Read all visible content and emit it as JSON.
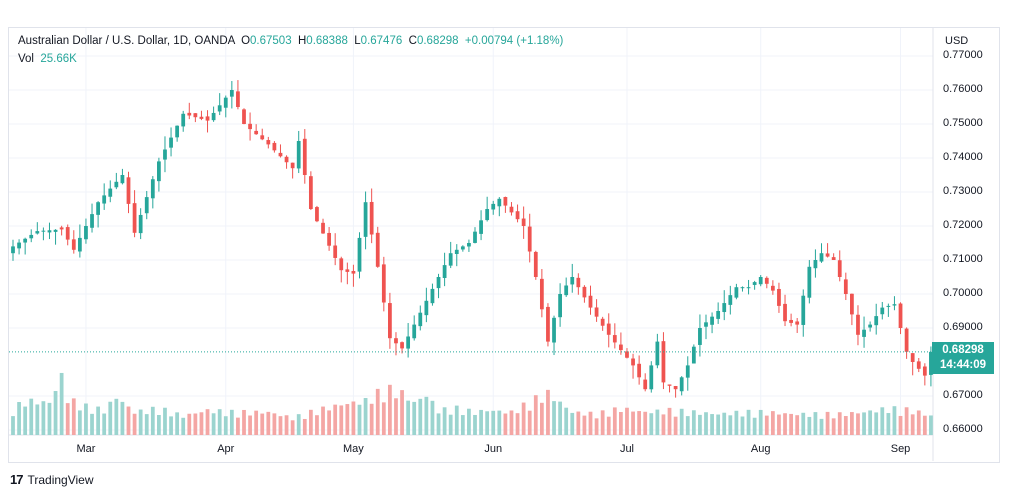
{
  "legend": {
    "symbol": "Australian Dollar / U.S. Dollar, 1D, OANDA",
    "o_label": "O",
    "o_value": "0.67503",
    "h_label": "H",
    "h_value": "0.68388",
    "l_label": "L",
    "l_value": "0.67476",
    "c_label": "C",
    "c_value": "0.68298",
    "change": "+0.00794 (+1.18%)",
    "vol_label": "Vol",
    "vol_value": "25.66K"
  },
  "price_axis": {
    "currency": "USD",
    "current_price": "0.68298",
    "countdown": "14:44:09"
  },
  "footer": {
    "logo": "17",
    "brand": "TradingView"
  },
  "colors": {
    "up": "#26a69a",
    "down": "#ef5350",
    "up_vol": "#9bd4cf",
    "down_vol": "#f4a6a4",
    "grid": "#f0f3fa"
  },
  "chart_data": {
    "type": "candlestick",
    "y_ticks": [
      0.77,
      0.76,
      0.75,
      0.74,
      0.73,
      0.72,
      0.71,
      0.7,
      0.69,
      0.67,
      0.66
    ],
    "y_tick_labels": [
      "0.77000",
      "0.76000",
      "0.75000",
      "0.74000",
      "0.73000",
      "0.72000",
      "0.71000",
      "0.70000",
      "0.69000",
      "0.67000",
      "0.66000"
    ],
    "ylim": [
      0.6585,
      0.7725
    ],
    "x_ticks": [
      {
        "label": "Mar",
        "index": 12
      },
      {
        "label": "Apr",
        "index": 35
      },
      {
        "label": "May",
        "index": 56
      },
      {
        "label": "Jun",
        "index": 79
      },
      {
        "label": "Jul",
        "index": 101
      },
      {
        "label": "Aug",
        "index": 123
      },
      {
        "label": "Sep",
        "index": 146
      }
    ],
    "close_anchors": [
      [
        0,
        0.714
      ],
      [
        4,
        0.7185
      ],
      [
        8,
        0.719
      ],
      [
        10,
        0.713
      ],
      [
        14,
        0.727
      ],
      [
        18,
        0.735
      ],
      [
        20,
        0.718
      ],
      [
        24,
        0.739
      ],
      [
        28,
        0.753
      ],
      [
        32,
        0.751
      ],
      [
        36,
        0.76
      ],
      [
        38,
        0.75
      ],
      [
        42,
        0.744
      ],
      [
        46,
        0.737
      ],
      [
        47,
        0.745
      ],
      [
        49,
        0.725
      ],
      [
        54,
        0.707
      ],
      [
        56,
        0.706
      ],
      [
        58,
        0.727
      ],
      [
        60,
        0.708
      ],
      [
        62,
        0.687
      ],
      [
        64,
        0.684
      ],
      [
        68,
        0.698
      ],
      [
        72,
        0.712
      ],
      [
        75,
        0.715
      ],
      [
        78,
        0.725
      ],
      [
        80,
        0.728
      ],
      [
        84,
        0.72
      ],
      [
        86,
        0.705
      ],
      [
        88,
        0.686
      ],
      [
        90,
        0.7
      ],
      [
        92,
        0.705
      ],
      [
        95,
        0.696
      ],
      [
        98,
        0.688
      ],
      [
        102,
        0.679
      ],
      [
        104,
        0.672
      ],
      [
        106,
        0.686
      ],
      [
        107,
        0.674
      ],
      [
        109,
        0.672
      ],
      [
        111,
        0.679
      ],
      [
        113,
        0.69
      ],
      [
        116,
        0.695
      ],
      [
        119,
        0.702
      ],
      [
        121,
        0.702
      ],
      [
        123,
        0.705
      ],
      [
        125,
        0.701
      ],
      [
        127,
        0.692
      ],
      [
        129,
        0.691
      ],
      [
        131,
        0.708
      ],
      [
        133,
        0.712
      ],
      [
        135,
        0.71
      ],
      [
        137,
        0.7
      ],
      [
        139,
        0.688
      ],
      [
        141,
        0.691
      ],
      [
        143,
        0.696
      ],
      [
        145,
        0.697
      ],
      [
        147,
        0.683
      ],
      [
        148,
        0.68
      ],
      [
        150,
        0.676
      ],
      [
        151,
        0.683
      ]
    ],
    "volume_anchors": [
      [
        0,
        13.5
      ],
      [
        2,
        18
      ],
      [
        6,
        17
      ],
      [
        8,
        31
      ],
      [
        9,
        19
      ],
      [
        12,
        15
      ],
      [
        15,
        13
      ],
      [
        17,
        20
      ],
      [
        20,
        12
      ],
      [
        24,
        14
      ],
      [
        28,
        10
      ],
      [
        32,
        13
      ],
      [
        36,
        12
      ],
      [
        42,
        12
      ],
      [
        46,
        9
      ],
      [
        50,
        13
      ],
      [
        54,
        16
      ],
      [
        58,
        18
      ],
      [
        60,
        22
      ],
      [
        62,
        24
      ],
      [
        64,
        22
      ],
      [
        66,
        17
      ],
      [
        68,
        21
      ],
      [
        70,
        13
      ],
      [
        73,
        14
      ],
      [
        76,
        12
      ],
      [
        78,
        13
      ],
      [
        82,
        12
      ],
      [
        86,
        19
      ],
      [
        88,
        22
      ],
      [
        90,
        17
      ],
      [
        92,
        12
      ],
      [
        96,
        11
      ],
      [
        100,
        14
      ],
      [
        104,
        12
      ],
      [
        108,
        13
      ],
      [
        112,
        12
      ],
      [
        116,
        11
      ],
      [
        120,
        12
      ],
      [
        124,
        12
      ],
      [
        128,
        11
      ],
      [
        132,
        11
      ],
      [
        136,
        11
      ],
      [
        140,
        12
      ],
      [
        144,
        14
      ],
      [
        148,
        13
      ],
      [
        151,
        10
      ]
    ],
    "volume_range": [
      0,
      60
    ],
    "last_close": 0.68298
  }
}
